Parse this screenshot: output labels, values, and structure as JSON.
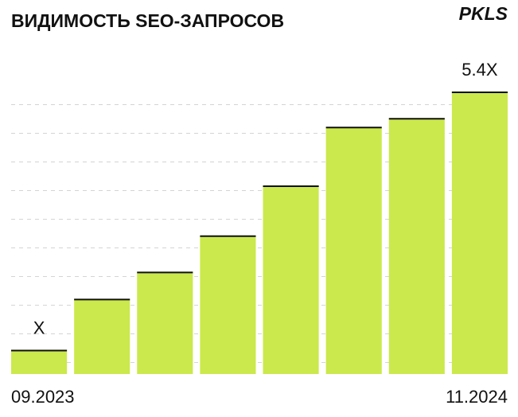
{
  "chart_data": {
    "type": "bar",
    "title": "ВИДИМОСТЬ SEO-ЗАПРОСОВ",
    "logo": "PKLS",
    "categories": [
      "09.2023",
      null,
      null,
      null,
      null,
      null,
      null,
      "11.2024"
    ],
    "values": [
      1,
      1.87,
      2.33,
      2.95,
      3.8,
      4.8,
      4.95,
      5.4
    ],
    "value_labels": [
      "X",
      null,
      null,
      null,
      null,
      null,
      null,
      "5.4X"
    ],
    "color": "#cbe94c",
    "ylim": [
      0.6,
      5.8
    ]
  }
}
